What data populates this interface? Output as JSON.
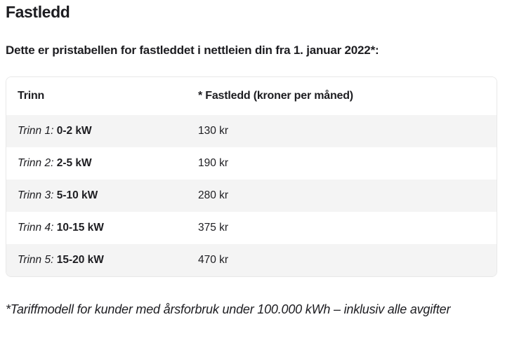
{
  "page": {
    "title": "Fastledd",
    "intro": "Dette er pristabellen for fastleddet i nettleien din fra 1. januar 2022*:",
    "footnote": "*Tariffmodell for kunder med årsforbruk under 100.000 kWh – inklusiv alle avgifter"
  },
  "price_table": {
    "columns": {
      "step": "Trinn",
      "price": "* Fastledd (kroner per måned)"
    },
    "rows": [
      {
        "step_label": "Trinn 1:",
        "range": "0-2 kW",
        "price": "130 kr"
      },
      {
        "step_label": "Trinn 2:",
        "range": "2-5 kW",
        "price": "190 kr"
      },
      {
        "step_label": "Trinn 3:",
        "range": "5-10 kW",
        "price": "280 kr"
      },
      {
        "step_label": "Trinn 4:",
        "range": "10-15 kW",
        "price": "375 kr"
      },
      {
        "step_label": "Trinn 5:",
        "range": "15-20 kW",
        "price": "470 kr"
      }
    ]
  },
  "colors": {
    "text": "#1d1d21",
    "row_alt_background": "#f4f4f4",
    "table_border": "#e8e8e8",
    "background": "#ffffff"
  }
}
